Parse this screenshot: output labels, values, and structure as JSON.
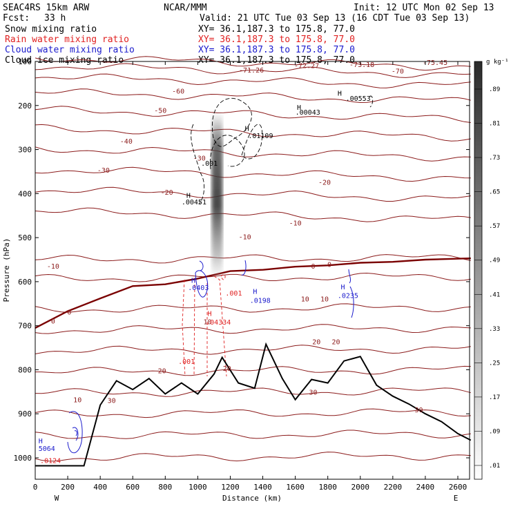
{
  "header": {
    "model": "SEAC4RS 15km ARW",
    "institution": "NCAR/MMM",
    "init": "Init: 12 UTC Mon 02 Sep 13",
    "fcst_label": "Fcst:",
    "fcst_value": "33 h",
    "valid": "Valid: 21 UTC Tue 03 Sep 13 (16 CDT Tue 03 Sep 13)"
  },
  "fields": [
    {
      "label": "Snow mixing ratio",
      "xy": "XY=  36.1,187.3 to 175.8, 77.0",
      "color": "#000000"
    },
    {
      "label": "Rain water mixing ratio",
      "xy": "XY=  36.1,187.3 to 175.8, 77.0",
      "color": "#e02020"
    },
    {
      "label": "Cloud water mixing ratio",
      "xy": "XY=  36.1,187.3 to 175.8, 77.0",
      "color": "#1a1acc"
    },
    {
      "label": "Cloud ice mixing ratio",
      "xy": "XY=  36.1,187.3 to 175.8, 77.0",
      "color": "#000000"
    }
  ],
  "colorbar": {
    "unit": "g kg⁻¹",
    "labels": [
      ".01",
      ".09",
      ".17",
      ".25",
      ".33",
      ".41",
      ".49",
      ".57",
      ".65",
      ".73",
      ".81",
      ".89"
    ]
  },
  "chart_data": {
    "type": "cross-section",
    "xlabel": "Distance (km)",
    "ylabel": "Pressure (hPa)",
    "xlim": [
      0,
      2680
    ],
    "ylim": [
      1050,
      100
    ],
    "x_ticks": [
      "0",
      "200",
      "400",
      "600",
      "800",
      "1000",
      "1200",
      "1400",
      "1600",
      "1800",
      "2000",
      "2200",
      "2400",
      "2600"
    ],
    "y_ticks": [
      "100",
      "200",
      "300",
      "400",
      "500",
      "600",
      "700",
      "800",
      "900",
      "1000"
    ],
    "x_ends": {
      "left": "W",
      "right": "E"
    },
    "temperature_isotherm_labels": [
      {
        "text": "-75.45",
        "x": 2460,
        "p": 103
      },
      {
        "text": "-73.18",
        "x": 2010,
        "p": 108
      },
      {
        "text": "-72.27",
        "x": 1670,
        "p": 110
      },
      {
        "text": "-71.26",
        "x": 1330,
        "p": 120
      },
      {
        "text": "-70",
        "x": 2230,
        "p": 123
      },
      {
        "text": "-60",
        "x": 880,
        "p": 168
      },
      {
        "text": "-50",
        "x": 770,
        "p": 212
      },
      {
        "text": "-40",
        "x": 560,
        "p": 282
      },
      {
        "text": "-30",
        "x": 420,
        "p": 348
      },
      {
        "text": "-30",
        "x": 1010,
        "p": 320
      },
      {
        "text": "-20",
        "x": 810,
        "p": 398
      },
      {
        "text": "-20",
        "x": 1780,
        "p": 375
      },
      {
        "text": "-10",
        "x": 1600,
        "p": 468
      },
      {
        "text": "-10",
        "x": 1290,
        "p": 499
      },
      {
        "text": "-10",
        "x": 110,
        "p": 566
      },
      {
        "text": "0",
        "x": 1710,
        "p": 566
      },
      {
        "text": "0",
        "x": 1810,
        "p": 562
      },
      {
        "text": "0",
        "x": 210,
        "p": 670
      },
      {
        "text": "0",
        "x": 110,
        "p": 690
      },
      {
        "text": "10",
        "x": 1660,
        "p": 640
      },
      {
        "text": "10",
        "x": 1780,
        "p": 640
      },
      {
        "text": "10",
        "x": 1060,
        "p": 692
      },
      {
        "text": "10",
        "x": 260,
        "p": 869
      },
      {
        "text": "20",
        "x": 1730,
        "p": 737
      },
      {
        "text": "20",
        "x": 1850,
        "p": 737
      },
      {
        "text": "20",
        "x": 780,
        "p": 803
      },
      {
        "text": "20",
        "x": 1180,
        "p": 798
      },
      {
        "text": "30",
        "x": 1710,
        "p": 852
      },
      {
        "text": "30",
        "x": 470,
        "p": 871
      },
      {
        "text": "30",
        "x": 2360,
        "p": 892
      }
    ],
    "hydrometeor_labels": [
      {
        "field": "snow",
        "text": ".00043",
        "x": 1600,
        "p": 216
      },
      {
        "field": "snow",
        "text": ".00553",
        "x": 1910,
        "p": 185
      },
      {
        "field": "snow",
        "text": ".01109",
        "x": 1310,
        "p": 269
      },
      {
        "field": "snow",
        "text": ".001",
        "x": 1020,
        "p": 332
      },
      {
        "field": "snow",
        "text": ".00451",
        "x": 900,
        "p": 420
      },
      {
        "field": "rain",
        "text": ".001",
        "x": 880,
        "p": 782
      },
      {
        "field": "rain",
        "text": ".04334",
        "x": 1050,
        "p": 693
      },
      {
        "field": "rain",
        "text": ".001",
        "x": 1170,
        "p": 627
      },
      {
        "field": "rain",
        "text": ".0124",
        "x": 30,
        "p": 1007
      },
      {
        "field": "cloud",
        "text": ".0403",
        "x": 940,
        "p": 614
      },
      {
        "field": "cloud",
        "text": ".0198",
        "x": 1320,
        "p": 643
      },
      {
        "field": "cloud",
        "text": ".0235",
        "x": 1860,
        "p": 632
      },
      {
        "field": "cloud",
        "text": "5064",
        "x": 20,
        "p": 980
      }
    ],
    "extrema_markers": [
      {
        "field": "snow",
        "x": 1610,
        "p": 205
      },
      {
        "field": "snow",
        "x": 1860,
        "p": 173
      },
      {
        "field": "snow",
        "x": 1290,
        "p": 253
      },
      {
        "field": "snow",
        "x": 930,
        "p": 405
      },
      {
        "field": "rain",
        "x": 1060,
        "p": 673
      },
      {
        "field": "cloud",
        "x": 960,
        "p": 598
      },
      {
        "field": "cloud",
        "x": 1340,
        "p": 623
      },
      {
        "field": "cloud",
        "x": 1880,
        "p": 613
      },
      {
        "field": "cloud",
        "x": 20,
        "p": 962
      }
    ],
    "freezing_level": [
      {
        "x": 0,
        "p": 705
      },
      {
        "x": 200,
        "p": 667
      },
      {
        "x": 400,
        "p": 638
      },
      {
        "x": 600,
        "p": 610
      },
      {
        "x": 800,
        "p": 606
      },
      {
        "x": 1000,
        "p": 593
      },
      {
        "x": 1200,
        "p": 576
      },
      {
        "x": 1400,
        "p": 573
      },
      {
        "x": 1600,
        "p": 566
      },
      {
        "x": 1800,
        "p": 563
      },
      {
        "x": 2000,
        "p": 557
      },
      {
        "x": 2200,
        "p": 555
      },
      {
        "x": 2400,
        "p": 550
      },
      {
        "x": 2680,
        "p": 547
      }
    ],
    "terrain": [
      {
        "x": 0,
        "p": 1018
      },
      {
        "x": 300,
        "p": 1018
      },
      {
        "x": 400,
        "p": 880
      },
      {
        "x": 500,
        "p": 825
      },
      {
        "x": 600,
        "p": 845
      },
      {
        "x": 700,
        "p": 820
      },
      {
        "x": 800,
        "p": 855
      },
      {
        "x": 900,
        "p": 830
      },
      {
        "x": 1000,
        "p": 855
      },
      {
        "x": 1100,
        "p": 810
      },
      {
        "x": 1150,
        "p": 772
      },
      {
        "x": 1250,
        "p": 830
      },
      {
        "x": 1350,
        "p": 842
      },
      {
        "x": 1420,
        "p": 742
      },
      {
        "x": 1520,
        "p": 820
      },
      {
        "x": 1600,
        "p": 868
      },
      {
        "x": 1700,
        "p": 822
      },
      {
        "x": 1800,
        "p": 830
      },
      {
        "x": 1900,
        "p": 780
      },
      {
        "x": 2000,
        "p": 770
      },
      {
        "x": 2100,
        "p": 835
      },
      {
        "x": 2200,
        "p": 860
      },
      {
        "x": 2300,
        "p": 878
      },
      {
        "x": 2400,
        "p": 900
      },
      {
        "x": 2500,
        "p": 918
      },
      {
        "x": 2600,
        "p": 945
      },
      {
        "x": 2680,
        "p": 960
      }
    ],
    "colors": {
      "isotherm": "#8b1a1a",
      "freezing_line": "#7a0000",
      "terrain": "#000000",
      "rain": "#e02020",
      "cloud": "#1a1acc",
      "snow": "#000000"
    }
  }
}
